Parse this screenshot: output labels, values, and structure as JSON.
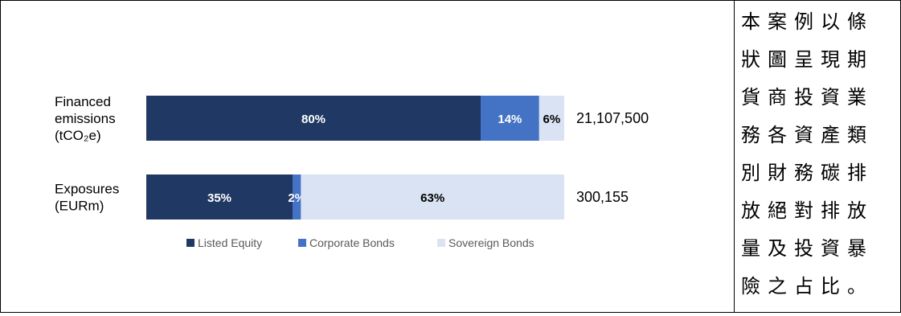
{
  "chart_data": {
    "type": "bar",
    "stacked": true,
    "orientation": "horizontal",
    "percent_stacked": true,
    "categories": [
      {
        "lines": [
          "Financed",
          "emissions",
          "(tCO₂e)"
        ],
        "total_label": "21,107,500"
      },
      {
        "lines": [
          "Exposures",
          "(EURm)"
        ],
        "total_label": "300,155"
      }
    ],
    "series": [
      {
        "name": "Listed Equity",
        "color": "#203864",
        "values": [
          80,
          35
        ],
        "labels": [
          "80%",
          "35%"
        ],
        "label_color": "#ffffff"
      },
      {
        "name": "Corporate Bonds",
        "color": "#4472c4",
        "values": [
          14,
          2
        ],
        "labels": [
          "14%",
          "2%"
        ],
        "label_color": "#ffffff"
      },
      {
        "name": "Sovereign Bonds",
        "color": "#dae3f3",
        "values": [
          6,
          63
        ],
        "labels": [
          "6%",
          "63%"
        ],
        "label_color": "#000000"
      }
    ],
    "xlim": [
      0,
      100
    ],
    "grid": false,
    "legend_position": "bottom"
  },
  "note": {
    "lines": [
      "本案例以條",
      "狀圖呈現期",
      "貨商投資業",
      "務各資產類",
      "別財務碳排",
      "放絕對排放",
      "量及投資暴",
      "險之占比。"
    ]
  }
}
